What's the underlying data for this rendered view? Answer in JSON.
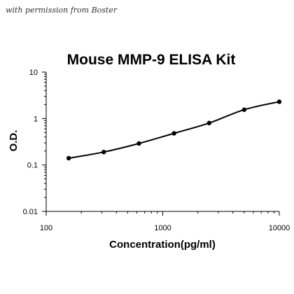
{
  "watermark": "with permission from Boster",
  "chart_data": {
    "type": "line",
    "title": "Mouse MMP-9 ELISA Kit",
    "xlabel": "Concentration(pg/ml)",
    "ylabel": "O.D.",
    "x_scale": "log",
    "y_scale": "log",
    "xlim": [
      100,
      10000
    ],
    "ylim": [
      0.01,
      10
    ],
    "x_ticks": [
      "100",
      "1000",
      "10000"
    ],
    "y_ticks": [
      "0.01",
      "0.1",
      "1",
      "10"
    ],
    "grid": false,
    "legend": "none",
    "series": [
      {
        "x": [
          156,
          312,
          625,
          1250,
          2500,
          5000,
          10000
        ],
        "y": [
          0.14,
          0.19,
          0.29,
          0.48,
          0.8,
          1.55,
          2.3
        ]
      }
    ],
    "colors": {
      "line": "#000000",
      "marker": "#000000",
      "axis": "#000000"
    }
  }
}
